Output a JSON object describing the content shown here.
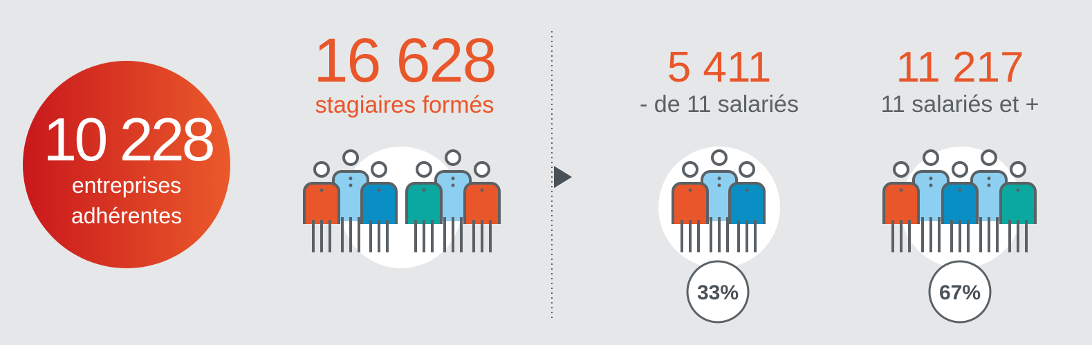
{
  "members": {
    "value": "10 228",
    "label_lines": [
      "entreprises",
      "adhérentes"
    ]
  },
  "trainees": {
    "value": "16 628",
    "label": "stagiaires formés"
  },
  "groups": [
    {
      "value": "5 411",
      "label": "- de 11 salariés",
      "share": "33%"
    },
    {
      "value": "11 217",
      "label": "11 salariés et +",
      "share": "67%"
    }
  ]
}
